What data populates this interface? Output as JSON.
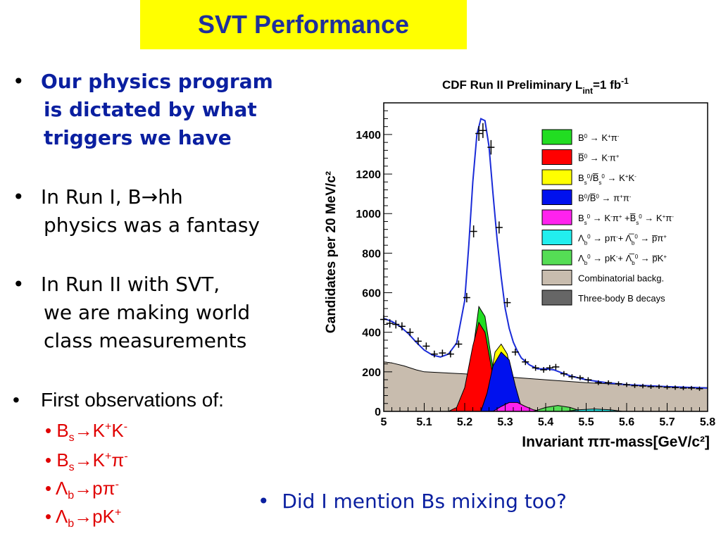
{
  "slide": {
    "title": "SVT Performance",
    "bullets": [
      {
        "line1": "Our physics program",
        "line2": "is dictated by what",
        "line3": "triggers we have"
      },
      {
        "line1": "In Run I, B→hh",
        "line2": "physics was a fantasy"
      },
      {
        "line1": "In Run II with SVT,",
        "line2": "we are making world",
        "line3": "class measurements"
      },
      {
        "line1": "First observations of:"
      }
    ],
    "sub_bullets": [
      {
        "base": "B",
        "sub": "s",
        "arrow": "→",
        "rest_html": "K<sup>+</sup>K<sup>-</sup>"
      },
      {
        "base": "B",
        "sub": "s",
        "arrow": "→",
        "rest_html": "K<sup>+</sup>π<sup>-</sup>"
      },
      {
        "base": "Λ",
        "sub": "b",
        "arrow": "→",
        "rest_html": "pπ<sup>-</sup>"
      },
      {
        "base": "Λ",
        "sub": "b",
        "arrow": "→",
        "rest_html": "pK<sup>+</sup>"
      }
    ],
    "bullet_char": "•",
    "sub_bullet_char": "•",
    "last_bullet": "Did I mention Bs mixing too?"
  },
  "chart_data": {
    "type": "area",
    "title": "CDF Run II  Preliminary L",
    "title_sub": "int",
    "title_tail": "=1 fb",
    "title_sup": "-1",
    "xlabel": "Invariant ππ-mass[GeV/c²]",
    "ylabel": "Candidates per 20 MeV/c²",
    "xlim": [
      5.0,
      5.8
    ],
    "ylim": [
      0,
      1560
    ],
    "xticks": [
      5.0,
      5.1,
      5.2,
      5.3,
      5.4,
      5.5,
      5.6,
      5.7,
      5.8
    ],
    "xtick_labels": [
      "5",
      "5.1",
      "5.2",
      "5.3",
      "5.4",
      "5.5",
      "5.6",
      "5.7",
      "5.8"
    ],
    "yticks": [
      0,
      200,
      400,
      600,
      800,
      1000,
      1200,
      1400
    ],
    "ytick_labels": [
      "0",
      "200",
      "400",
      "600",
      "800",
      "1000",
      "1200",
      "1400"
    ],
    "legend": [
      {
        "html": "B<tspan baseline-shift=\"super\" font-size=\"8\">0</tspan> → K<tspan baseline-shift=\"super\" font-size=\"8\">+</tspan>π<tspan baseline-shift=\"super\" font-size=\"8\">-</tspan>",
        "color": "#22dd22"
      },
      {
        "html": "B̅<tspan baseline-shift=\"super\" font-size=\"8\">0</tspan> → K<tspan baseline-shift=\"super\" font-size=\"8\">-</tspan>π<tspan baseline-shift=\"super\" font-size=\"8\">+</tspan>",
        "color": "#ff0000"
      },
      {
        "html": "B<tspan baseline-shift=\"sub\" font-size=\"8\">s</tspan><tspan baseline-shift=\"super\" font-size=\"8\">0</tspan>/B̅<tspan baseline-shift=\"sub\" font-size=\"8\">s</tspan><tspan baseline-shift=\"super\" font-size=\"8\">0</tspan>  → K<tspan baseline-shift=\"super\" font-size=\"8\">+</tspan>K<tspan baseline-shift=\"super\" font-size=\"8\">-</tspan>",
        "color": "#ffff00"
      },
      {
        "html": "B<tspan baseline-shift=\"super\" font-size=\"8\">0</tspan>/B̅<tspan baseline-shift=\"super\" font-size=\"8\">0</tspan> → π<tspan baseline-shift=\"super\" font-size=\"8\">+</tspan>π<tspan baseline-shift=\"super\" font-size=\"8\">-</tspan>",
        "color": "#0011ee"
      },
      {
        "html": "B<tspan baseline-shift=\"sub\" font-size=\"8\">s</tspan><tspan baseline-shift=\"super\" font-size=\"8\">0</tspan> → K<tspan baseline-shift=\"super\" font-size=\"8\">-</tspan>π<tspan baseline-shift=\"super\" font-size=\"8\">+</tspan> +B̅<tspan baseline-shift=\"sub\" font-size=\"8\">s</tspan><tspan baseline-shift=\"super\" font-size=\"8\">0</tspan> → K<tspan baseline-shift=\"super\" font-size=\"8\">+</tspan>π<tspan baseline-shift=\"super\" font-size=\"8\">-</tspan>",
        "color": "#ff22ee"
      },
      {
        "html": "Λ<tspan baseline-shift=\"sub\" font-size=\"8\">b</tspan><tspan baseline-shift=\"super\" font-size=\"8\">0</tspan> → pπ<tspan baseline-shift=\"super\" font-size=\"8\">-</tspan>+ Λ̅<tspan baseline-shift=\"sub\" font-size=\"8\">b</tspan><tspan baseline-shift=\"super\" font-size=\"8\">0</tspan> → p̅π<tspan baseline-shift=\"super\" font-size=\"8\">+</tspan>",
        "color": "#22eeee"
      },
      {
        "html": "Λ<tspan baseline-shift=\"sub\" font-size=\"8\">b</tspan><tspan baseline-shift=\"super\" font-size=\"8\">0</tspan> → pK<tspan baseline-shift=\"super\" font-size=\"8\">-</tspan>+ Λ̅<tspan baseline-shift=\"sub\" font-size=\"8\">b</tspan><tspan baseline-shift=\"super\" font-size=\"8\">0</tspan> → p̅K<tspan baseline-shift=\"super\" font-size=\"8\">+</tspan>",
        "color": "#55dd55"
      },
      {
        "html": "Combinatorial backg.",
        "color": "#c8bcae"
      },
      {
        "html": "Three-body B decays",
        "color": "#666666"
      }
    ],
    "legend_placement": "right",
    "components": [
      {
        "name_index": 8,
        "color": "#666666",
        "points": [
          [
            5.0,
            250
          ],
          [
            5.02,
            245
          ],
          [
            5.04,
            225
          ],
          [
            5.06,
            190
          ],
          [
            5.08,
            140
          ],
          [
            5.1,
            90
          ],
          [
            5.12,
            45
          ],
          [
            5.14,
            15
          ],
          [
            5.16,
            0
          ]
        ]
      },
      {
        "name_index": 7,
        "color": "#c8bcae",
        "points": [
          [
            5.0,
            250
          ],
          [
            5.02,
            245
          ],
          [
            5.05,
            230
          ],
          [
            5.08,
            210
          ],
          [
            5.1,
            200
          ],
          [
            5.2,
            190
          ],
          [
            5.3,
            175
          ],
          [
            5.4,
            160
          ],
          [
            5.5,
            145
          ],
          [
            5.6,
            135
          ],
          [
            5.7,
            125
          ],
          [
            5.8,
            120
          ],
          [
            5.8,
            0
          ],
          [
            5.0,
            0
          ]
        ]
      },
      {
        "name_index": 0,
        "color": "#22dd22",
        "points": [
          [
            5.18,
            0
          ],
          [
            5.2,
            80
          ],
          [
            5.22,
            300
          ],
          [
            5.235,
            530
          ],
          [
            5.25,
            480
          ],
          [
            5.265,
            280
          ],
          [
            5.28,
            90
          ],
          [
            5.3,
            0
          ]
        ]
      },
      {
        "name_index": 1,
        "color": "#ff0000",
        "points": [
          [
            5.16,
            0
          ],
          [
            5.18,
            20
          ],
          [
            5.2,
            120
          ],
          [
            5.22,
            330
          ],
          [
            5.235,
            450
          ],
          [
            5.25,
            400
          ],
          [
            5.265,
            230
          ],
          [
            5.28,
            70
          ],
          [
            5.3,
            0
          ]
        ]
      },
      {
        "name_index": 2,
        "color": "#ffff00",
        "points": [
          [
            5.24,
            0
          ],
          [
            5.26,
            120
          ],
          [
            5.275,
            300
          ],
          [
            5.29,
            340
          ],
          [
            5.305,
            290
          ],
          [
            5.32,
            140
          ],
          [
            5.34,
            20
          ],
          [
            5.35,
            0
          ]
        ]
      },
      {
        "name_index": 3,
        "color": "#0011ee",
        "points": [
          [
            5.24,
            0
          ],
          [
            5.255,
            90
          ],
          [
            5.27,
            230
          ],
          [
            5.29,
            300
          ],
          [
            5.31,
            260
          ],
          [
            5.325,
            130
          ],
          [
            5.34,
            20
          ],
          [
            5.35,
            0
          ]
        ]
      },
      {
        "name_index": 4,
        "color": "#ff22ee",
        "points": [
          [
            5.27,
            0
          ],
          [
            5.29,
            25
          ],
          [
            5.31,
            45
          ],
          [
            5.33,
            45
          ],
          [
            5.35,
            25
          ],
          [
            5.37,
            8
          ],
          [
            5.39,
            0
          ]
        ]
      },
      {
        "name_index": 6,
        "color": "#55dd55",
        "points": [
          [
            5.37,
            0
          ],
          [
            5.4,
            20
          ],
          [
            5.43,
            30
          ],
          [
            5.46,
            20
          ],
          [
            5.49,
            0
          ]
        ]
      },
      {
        "name_index": 5,
        "color": "#22eeee",
        "points": [
          [
            5.45,
            0
          ],
          [
            5.48,
            8
          ],
          [
            5.52,
            12
          ],
          [
            5.56,
            8
          ],
          [
            5.59,
            0
          ]
        ]
      }
    ],
    "fit_curve": [
      [
        5.0,
        470
      ],
      [
        5.02,
        455
      ],
      [
        5.04,
        430
      ],
      [
        5.06,
        395
      ],
      [
        5.08,
        350
      ],
      [
        5.1,
        310
      ],
      [
        5.12,
        285
      ],
      [
        5.14,
        275
      ],
      [
        5.16,
        290
      ],
      [
        5.18,
        345
      ],
      [
        5.2,
        560
      ],
      [
        5.21,
        840
      ],
      [
        5.22,
        1160
      ],
      [
        5.23,
        1400
      ],
      [
        5.24,
        1480
      ],
      [
        5.25,
        1470
      ],
      [
        5.26,
        1340
      ],
      [
        5.27,
        1100
      ],
      [
        5.28,
        870
      ],
      [
        5.29,
        680
      ],
      [
        5.3,
        520
      ],
      [
        5.31,
        420
      ],
      [
        5.32,
        350
      ],
      [
        5.33,
        305
      ],
      [
        5.34,
        270
      ],
      [
        5.36,
        235
      ],
      [
        5.38,
        215
      ],
      [
        5.4,
        215
      ],
      [
        5.42,
        210
      ],
      [
        5.44,
        195
      ],
      [
        5.46,
        180
      ],
      [
        5.5,
        160
      ],
      [
        5.55,
        145
      ],
      [
        5.6,
        135
      ],
      [
        5.7,
        125
      ],
      [
        5.8,
        118
      ]
    ],
    "data_points": [
      [
        5.0,
        465
      ],
      [
        5.015,
        445
      ],
      [
        5.03,
        440
      ],
      [
        5.045,
        430
      ],
      [
        5.065,
        400
      ],
      [
        5.085,
        355
      ],
      [
        5.105,
        330
      ],
      [
        5.125,
        290
      ],
      [
        5.145,
        295
      ],
      [
        5.165,
        290
      ],
      [
        5.185,
        340
      ],
      [
        5.205,
        575
      ],
      [
        5.222,
        910
      ],
      [
        5.235,
        1405
      ],
      [
        5.245,
        1420
      ],
      [
        5.265,
        1335
      ],
      [
        5.285,
        930
      ],
      [
        5.305,
        550
      ],
      [
        5.325,
        300
      ],
      [
        5.35,
        250
      ],
      [
        5.375,
        220
      ],
      [
        5.395,
        210
      ],
      [
        5.41,
        220
      ],
      [
        5.425,
        225
      ],
      [
        5.445,
        190
      ],
      [
        5.465,
        175
      ],
      [
        5.485,
        170
      ],
      [
        5.505,
        160
      ],
      [
        5.53,
        145
      ],
      [
        5.555,
        145
      ],
      [
        5.58,
        140
      ],
      [
        5.6,
        135
      ],
      [
        5.62,
        130
      ],
      [
        5.64,
        128
      ],
      [
        5.66,
        125
      ],
      [
        5.68,
        125
      ],
      [
        5.7,
        122
      ],
      [
        5.72,
        120
      ],
      [
        5.74,
        118
      ],
      [
        5.76,
        118
      ],
      [
        5.78,
        115
      ]
    ]
  }
}
